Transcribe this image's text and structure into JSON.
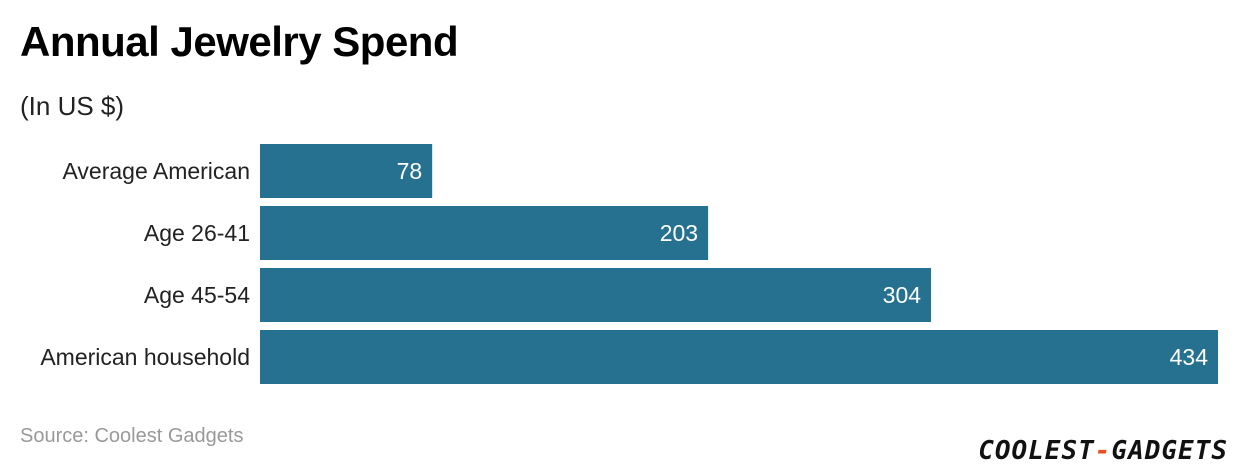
{
  "title": "Annual Jewelry Spend",
  "subtitle": "(In US $)",
  "source": "Source: Coolest Gadgets",
  "logo": {
    "part1": "COOLEST",
    "separator": "-",
    "part2": "GADGETS"
  },
  "colors": {
    "bar": "#267190",
    "logo_accent": "#e8501e"
  },
  "chart_data": {
    "type": "bar",
    "orientation": "horizontal",
    "categories": [
      "Average American",
      "Age 26-41",
      "Age 45-54",
      "American household"
    ],
    "values": [
      78,
      203,
      304,
      434
    ],
    "data_labels": [
      "78",
      "203",
      "304",
      "434"
    ],
    "xlim": [
      0,
      434
    ],
    "grid": false,
    "legend": "none"
  }
}
